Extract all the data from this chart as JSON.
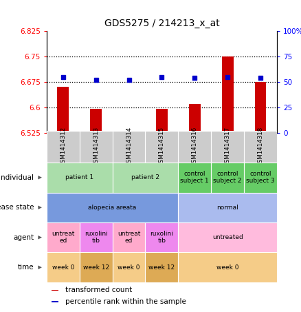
{
  "title": "GDS5275 / 214213_x_at",
  "samples": [
    "GSM1414312",
    "GSM1414313",
    "GSM1414314",
    "GSM1414315",
    "GSM1414316",
    "GSM1414317",
    "GSM1414318"
  ],
  "bar_values": [
    6.66,
    6.595,
    6.527,
    6.595,
    6.61,
    6.75,
    6.675
  ],
  "dot_values": [
    55,
    52,
    52,
    55,
    54,
    55,
    54
  ],
  "ylim_left": [
    6.525,
    6.825
  ],
  "ylim_right": [
    0,
    100
  ],
  "yticks_left": [
    6.525,
    6.6,
    6.675,
    6.75,
    6.825
  ],
  "yticks_right": [
    0,
    25,
    50,
    75,
    100
  ],
  "ytick_labels_left": [
    "6.525",
    "6.6",
    "6.675",
    "6.75",
    "6.825"
  ],
  "ytick_labels_right": [
    "0",
    "25",
    "50",
    "75",
    "100%"
  ],
  "hlines": [
    6.6,
    6.675,
    6.75
  ],
  "bar_color": "#cc0000",
  "dot_color": "#0000cc",
  "bar_width": 0.35,
  "annotation_rows": [
    {
      "label": "individual",
      "cells": [
        {
          "text": "patient 1",
          "span": [
            0,
            1
          ],
          "color": "#aaddaa"
        },
        {
          "text": "patient 2",
          "span": [
            2,
            3
          ],
          "color": "#aaddaa"
        },
        {
          "text": "control\nsubject 1",
          "span": [
            4,
            4
          ],
          "color": "#66cc66"
        },
        {
          "text": "control\nsubject 2",
          "span": [
            5,
            5
          ],
          "color": "#66cc66"
        },
        {
          "text": "control\nsubject 3",
          "span": [
            6,
            6
          ],
          "color": "#66cc66"
        }
      ]
    },
    {
      "label": "disease state",
      "cells": [
        {
          "text": "alopecia areata",
          "span": [
            0,
            3
          ],
          "color": "#7799dd"
        },
        {
          "text": "normal",
          "span": [
            4,
            6
          ],
          "color": "#aabbee"
        }
      ]
    },
    {
      "label": "agent",
      "cells": [
        {
          "text": "untreat\ned",
          "span": [
            0,
            0
          ],
          "color": "#ffaacc"
        },
        {
          "text": "ruxolini\ntib",
          "span": [
            1,
            1
          ],
          "color": "#ee88ee"
        },
        {
          "text": "untreat\ned",
          "span": [
            2,
            2
          ],
          "color": "#ffaacc"
        },
        {
          "text": "ruxolini\ntib",
          "span": [
            3,
            3
          ],
          "color": "#ee88ee"
        },
        {
          "text": "untreated",
          "span": [
            4,
            6
          ],
          "color": "#ffbbdd"
        }
      ]
    },
    {
      "label": "time",
      "cells": [
        {
          "text": "week 0",
          "span": [
            0,
            0
          ],
          "color": "#f5cc88"
        },
        {
          "text": "week 12",
          "span": [
            1,
            1
          ],
          "color": "#ddaa55"
        },
        {
          "text": "week 0",
          "span": [
            2,
            2
          ],
          "color": "#f5cc88"
        },
        {
          "text": "week 12",
          "span": [
            3,
            3
          ],
          "color": "#ddaa55"
        },
        {
          "text": "week 0",
          "span": [
            4,
            6
          ],
          "color": "#f5cc88"
        }
      ]
    }
  ],
  "legend_items": [
    {
      "color": "#cc0000",
      "label": "transformed count"
    },
    {
      "color": "#0000cc",
      "label": "percentile rank within the sample"
    }
  ]
}
